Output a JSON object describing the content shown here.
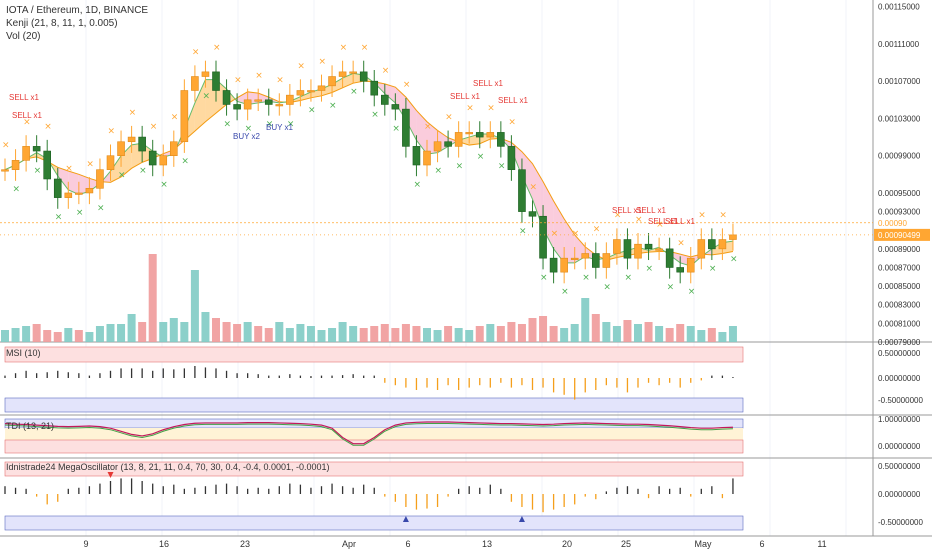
{
  "header": {
    "title": "IOTA / Ethereum, 1D, BINANCE",
    "indicator_1": "Kenji (21, 8, 11, 1, 0.005)",
    "indicator_2": "Vol (20)"
  },
  "price_axis": {
    "ticks": [
      "0.00115000",
      "0.00111000",
      "0.00107000",
      "0.00103000",
      "0.00099000",
      "0.00095000",
      "0.00093000",
      "0.00089000",
      "0.00087000",
      "0.00085000",
      "0.00083000",
      "0.00081000",
      "0.00079000"
    ],
    "last_price_label": "0.00090499",
    "dotted_price_label": "0.00090"
  },
  "panes": {
    "msi": {
      "label": "MSI (10)",
      "ticks": [
        "0.50000000",
        "0.00000000",
        "-0.50000000"
      ]
    },
    "tdi": {
      "label": "TDI (13, 21)",
      "ticks": [
        "1.00000000",
        "0.00000000"
      ]
    },
    "mega": {
      "label": "Idnistrade24 MegaOscillator (13, 8, 21, 11, 0.4, 70, 30, 0.4, -0.4, 0.0001, -0.0001)",
      "ticks": [
        "0.50000000",
        "0.00000000",
        "-0.50000000"
      ]
    }
  },
  "time_axis": {
    "labels": [
      "9",
      "16",
      "23",
      "Apr",
      "6",
      "13",
      "20",
      "25",
      "May",
      "6",
      "11"
    ]
  },
  "signals": {
    "sell_x1": "SELL x1",
    "buy_x2": "BUY x2",
    "buy_x1": "BUY x1"
  },
  "colors": {
    "bull": "#ffa632",
    "bear": "#2e7d32",
    "vol_up": "#80cbc4",
    "vol_down": "#ef9a9a",
    "band_up": "#ffcc80",
    "band_down": "#f8bbd0",
    "sell_text": "#e53935",
    "buy_text": "#3949ab"
  },
  "chart_data": {
    "type": "candlestick",
    "ohlc_open": [
      0.000975,
      0.000975,
      0.000985,
      0.001,
      0.000995,
      0.000965,
      0.000945,
      0.00095,
      0.00095,
      0.000955,
      0.000975,
      0.00099,
      0.001005,
      0.00101,
      0.000995,
      0.00098,
      0.00099,
      0.001005,
      0.00106,
      0.001075,
      0.00108,
      0.00106,
      0.001045,
      0.00104,
      0.00105,
      0.00105,
      0.001045,
      0.001045,
      0.001055,
      0.00106,
      0.00106,
      0.001065,
      0.001075,
      0.00108,
      0.00108,
      0.00107,
      0.001055,
      0.001045,
      0.00104,
      0.001,
      0.00098,
      0.000995,
      0.001005,
      0.001,
      0.001015,
      0.001015,
      0.00101,
      0.001015,
      0.001,
      0.000975,
      0.00093,
      0.000925,
      0.00088,
      0.000865,
      0.00088,
      0.00088,
      0.000885,
      0.00087,
      0.000885,
      0.0009,
      0.00088,
      0.000895,
      0.00089,
      0.00089,
      0.00087,
      0.000865,
      0.00088,
      0.0009,
      0.00089,
      0.0009
    ],
    "ohlc_close": [
      0.000975,
      0.000985,
      0.001,
      0.000995,
      0.000965,
      0.000945,
      0.00095,
      0.00095,
      0.000955,
      0.000975,
      0.00099,
      0.001005,
      0.00101,
      0.000995,
      0.00098,
      0.00099,
      0.001005,
      0.00106,
      0.001075,
      0.00108,
      0.00106,
      0.001045,
      0.00104,
      0.00105,
      0.00105,
      0.001045,
      0.001045,
      0.001055,
      0.00106,
      0.00106,
      0.001065,
      0.001075,
      0.00108,
      0.00108,
      0.00107,
      0.001055,
      0.001045,
      0.00104,
      0.001,
      0.00098,
      0.000995,
      0.001005,
      0.001,
      0.001015,
      0.001015,
      0.00101,
      0.001015,
      0.001,
      0.000975,
      0.00093,
      0.000925,
      0.00088,
      0.000865,
      0.00088,
      0.00088,
      0.000885,
      0.00087,
      0.000885,
      0.0009,
      0.00088,
      0.000895,
      0.00089,
      0.00089,
      0.00087,
      0.000865,
      0.00088,
      0.0009,
      0.00089,
      0.0009,
      0.000905
    ],
    "ylim": [
      0.00079,
      0.001155
    ],
    "volume": [
      6,
      7,
      8,
      9,
      6,
      5,
      7,
      6,
      5,
      8,
      9,
      9,
      14,
      10,
      44,
      10,
      12,
      10,
      36,
      15,
      12,
      10,
      9,
      10,
      8,
      7,
      10,
      7,
      9,
      8,
      6,
      7,
      10,
      8,
      7,
      8,
      9,
      7,
      9,
      8,
      7,
      6,
      8,
      7,
      6,
      8,
      9,
      8,
      10,
      9,
      12,
      13,
      8,
      7,
      9,
      22,
      14,
      10,
      8,
      11,
      9,
      10,
      8,
      7,
      9,
      8,
      6,
      7,
      5,
      8
    ],
    "volume_up": [
      true,
      true,
      true,
      false,
      false,
      false,
      true,
      false,
      true,
      true,
      true,
      true,
      true,
      false,
      false,
      true,
      true,
      true,
      true,
      true,
      false,
      false,
      false,
      true,
      false,
      false,
      true,
      true,
      true,
      true,
      true,
      true,
      true,
      true,
      false,
      false,
      false,
      false,
      false,
      false,
      true,
      true,
      false,
      true,
      true,
      false,
      true,
      false,
      false,
      false,
      false,
      false,
      false,
      true,
      true,
      true,
      false,
      true,
      true,
      false,
      true,
      false,
      true,
      false,
      false,
      true,
      true,
      false,
      true,
      true
    ],
    "msi": [
      0.05,
      0.1,
      0.15,
      0.1,
      0.12,
      0.15,
      0.12,
      0.1,
      0.05,
      0.1,
      0.15,
      0.2,
      0.2,
      0.2,
      0.15,
      0.2,
      0.18,
      0.2,
      0.25,
      0.22,
      0.2,
      0.15,
      0.1,
      0.1,
      0.08,
      0.05,
      0.05,
      0.08,
      0.05,
      0.04,
      0.05,
      0.05,
      0.06,
      0.08,
      0.05,
      0.05,
      -0.1,
      -0.15,
      -0.2,
      -0.25,
      -0.2,
      -0.25,
      -0.15,
      -0.25,
      -0.2,
      -0.15,
      -0.2,
      -0.1,
      -0.2,
      -0.15,
      -0.25,
      -0.2,
      -0.3,
      -0.35,
      -0.45,
      -0.3,
      -0.25,
      -0.15,
      -0.2,
      -0.3,
      -0.2,
      -0.1,
      -0.15,
      -0.1,
      -0.2,
      -0.1,
      -0.05,
      0.05,
      0.05,
      0.02
    ],
    "tdi_line": [
      0.95,
      0.93,
      0.92,
      0.9,
      0.88,
      0.86,
      0.85,
      0.86,
      0.87,
      0.85,
      0.8,
      0.7,
      0.6,
      0.55,
      0.62,
      0.75,
      0.85,
      0.92,
      0.96,
      0.97,
      0.97,
      0.97,
      0.97,
      0.98,
      0.98,
      0.98,
      0.97,
      0.96,
      0.95,
      0.93,
      0.9,
      0.8,
      0.5,
      0.3,
      0.3,
      0.5,
      0.75,
      0.9,
      0.97,
      0.99,
      1.0,
      1.0,
      1.0,
      0.99,
      0.98,
      0.97,
      0.96,
      0.95,
      0.95,
      0.94,
      0.93,
      0.92,
      0.93,
      0.95,
      0.96,
      0.97,
      0.96,
      0.95,
      0.94,
      0.93,
      0.93,
      0.92,
      0.9,
      0.88,
      0.85,
      0.82,
      0.8,
      0.8,
      0.82,
      0.83
    ],
    "mega": [
      0.15,
      0.12,
      0.1,
      -0.05,
      -0.2,
      -0.15,
      0.1,
      0.12,
      0.15,
      0.2,
      0.25,
      0.3,
      0.3,
      0.25,
      0.2,
      0.15,
      0.18,
      0.1,
      0.12,
      0.15,
      0.18,
      0.2,
      0.15,
      0.1,
      0.12,
      0.1,
      0.15,
      0.2,
      0.18,
      0.12,
      0.15,
      0.2,
      0.15,
      0.12,
      0.18,
      0.12,
      -0.05,
      -0.15,
      -0.25,
      -0.3,
      -0.28,
      -0.25,
      -0.05,
      0.1,
      0.15,
      0.12,
      0.18,
      0.1,
      -0.15,
      -0.25,
      -0.3,
      -0.35,
      -0.3,
      -0.25,
      -0.2,
      -0.05,
      -0.1,
      0.05,
      0.12,
      0.15,
      0.1,
      -0.08,
      0.15,
      0.1,
      0.12,
      -0.05,
      0.1,
      0.15,
      -0.08,
      0.3
    ]
  }
}
